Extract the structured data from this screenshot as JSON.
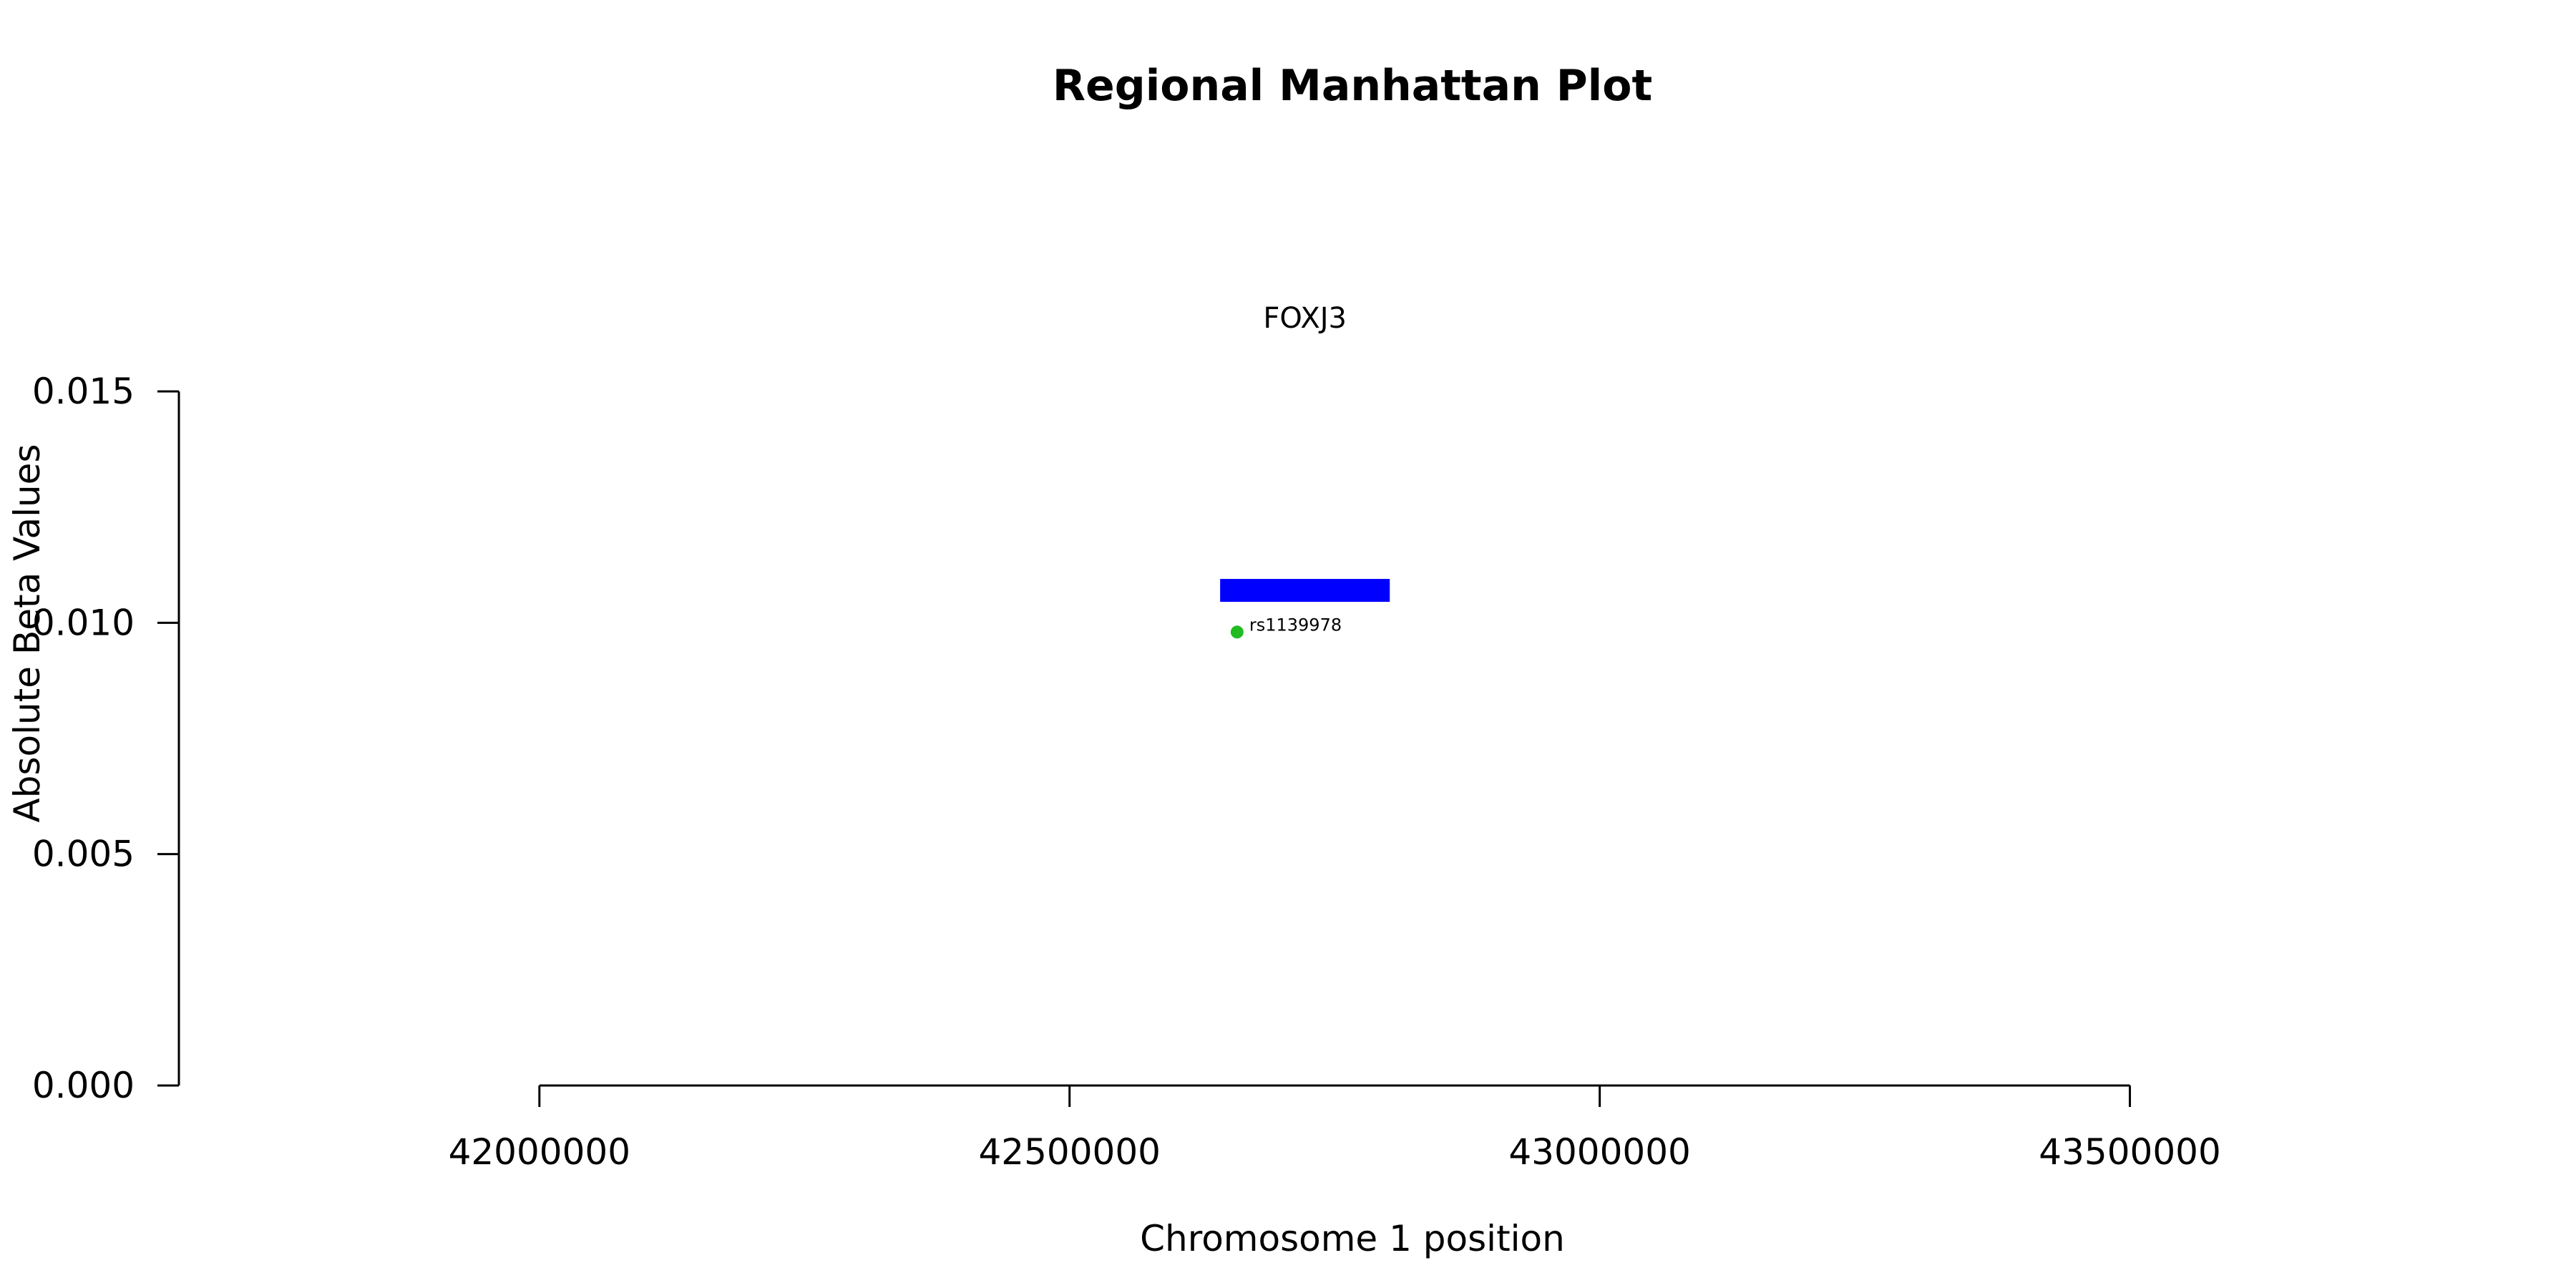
{
  "chart_data": {
    "type": "scatter",
    "title": "Regional Manhattan Plot",
    "xlabel": "Chromosome 1 position",
    "ylabel": "Absolute Beta Values",
    "x_ticks": [
      42000000,
      42500000,
      43000000,
      43500000
    ],
    "x_tick_labels": [
      "42000000",
      "42500000",
      "43000000",
      "43500000"
    ],
    "y_ticks": [
      0.0,
      0.005,
      0.01,
      0.015
    ],
    "y_tick_labels": [
      "0.000",
      "0.005",
      "0.010",
      "0.015"
    ],
    "xlim": [
      41660000,
      43860000
    ],
    "ylim": [
      0.0,
      0.015
    ],
    "grid": false,
    "genes": [
      {
        "name": "FOXJ3",
        "start": 42642000,
        "end": 42802000,
        "y": 0.0107,
        "color": "#0000ff"
      }
    ],
    "points": [
      {
        "label": "rs1139978",
        "x": 42658000,
        "y": 0.0098,
        "color": "#22bb22"
      }
    ]
  }
}
